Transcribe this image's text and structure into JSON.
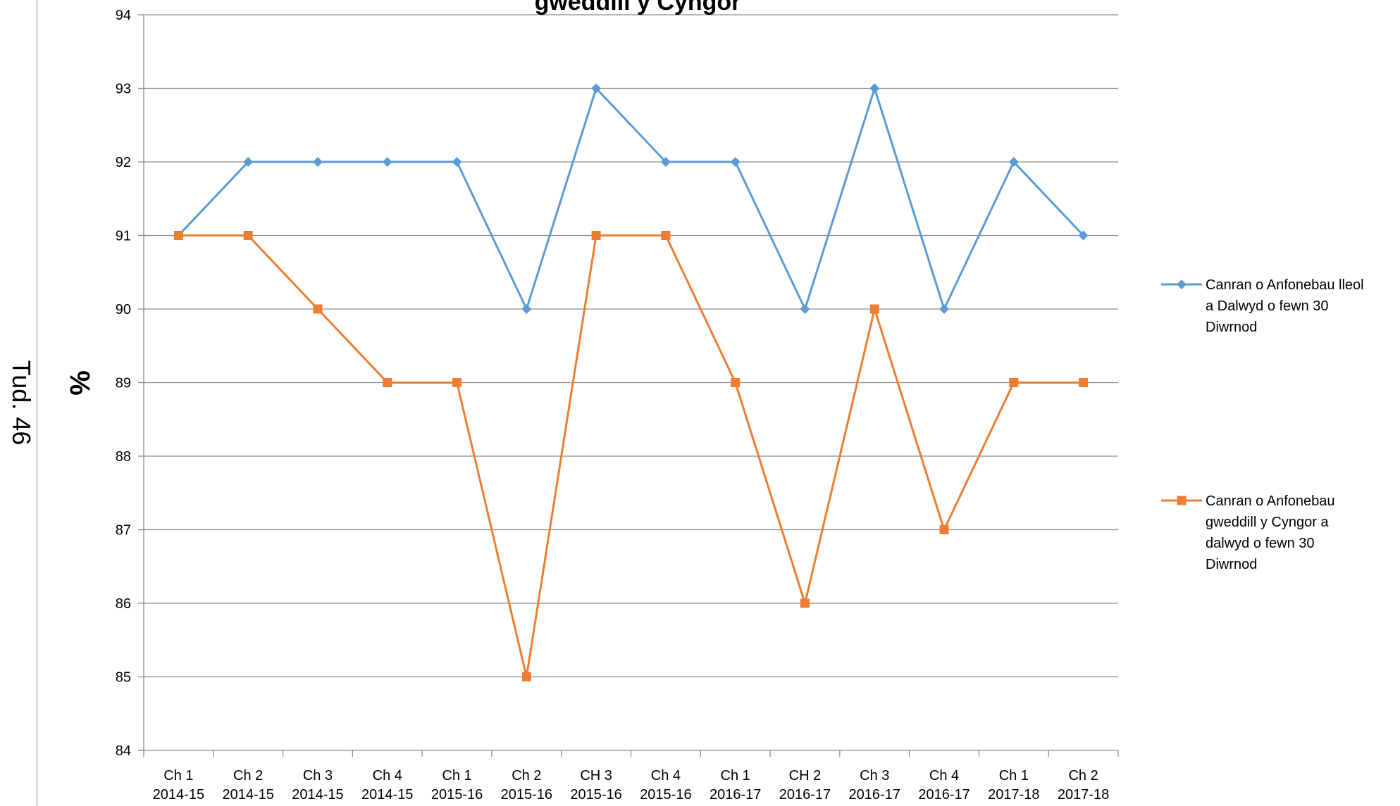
{
  "page": {
    "page_number_label": "Tud. 46"
  },
  "chart_data": {
    "type": "line",
    "title": "gweddill y Cyngor",
    "ylabel": "%",
    "xlabel": "",
    "ylim": [
      84,
      94
    ],
    "ytick_step": 1,
    "grid": true,
    "legend_position": "right",
    "categories": [
      [
        "Ch 1",
        "2014-15"
      ],
      [
        "Ch 2",
        "2014-15"
      ],
      [
        "Ch 3",
        "2014-15"
      ],
      [
        "Ch 4",
        "2014-15"
      ],
      [
        "Ch 1",
        "2015-16"
      ],
      [
        "Ch 2",
        "2015-16"
      ],
      [
        "CH 3",
        "2015-16"
      ],
      [
        "Ch 4",
        "2015-16"
      ],
      [
        "Ch 1",
        "2016-17"
      ],
      [
        "CH 2",
        "2016-17"
      ],
      [
        "Ch 3",
        "2016-17"
      ],
      [
        "Ch 4",
        "2016-17"
      ],
      [
        "Ch 1",
        "2017-18"
      ],
      [
        "Ch 2",
        "2017-18"
      ]
    ],
    "series": [
      {
        "name": "Canran o Anfonebau lleol a Dalwyd o fewn 30 Diwrnod",
        "legend_lines": [
          "Canran o Anfonebau lleol",
          "a Dalwyd o fewn 30",
          "Diwrnod"
        ],
        "color": "#5b9bd5",
        "marker": "diamond",
        "values": [
          91,
          92,
          92,
          92,
          92,
          90,
          93,
          92,
          92,
          90,
          93,
          90,
          92,
          91
        ]
      },
      {
        "name": "Canran o Anfonebau gweddill y Cyngor a dalwyd o fewn 30 Diwrnod",
        "legend_lines": [
          "Canran o Anfonebau",
          "gweddill y Cyngor a",
          "dalwyd o fewn 30",
          "Diwrnod"
        ],
        "color": "#ed7d31",
        "marker": "square",
        "values": [
          91,
          91,
          90,
          89,
          89,
          85,
          91,
          91,
          89,
          86,
          90,
          87,
          89,
          89
        ]
      }
    ]
  }
}
